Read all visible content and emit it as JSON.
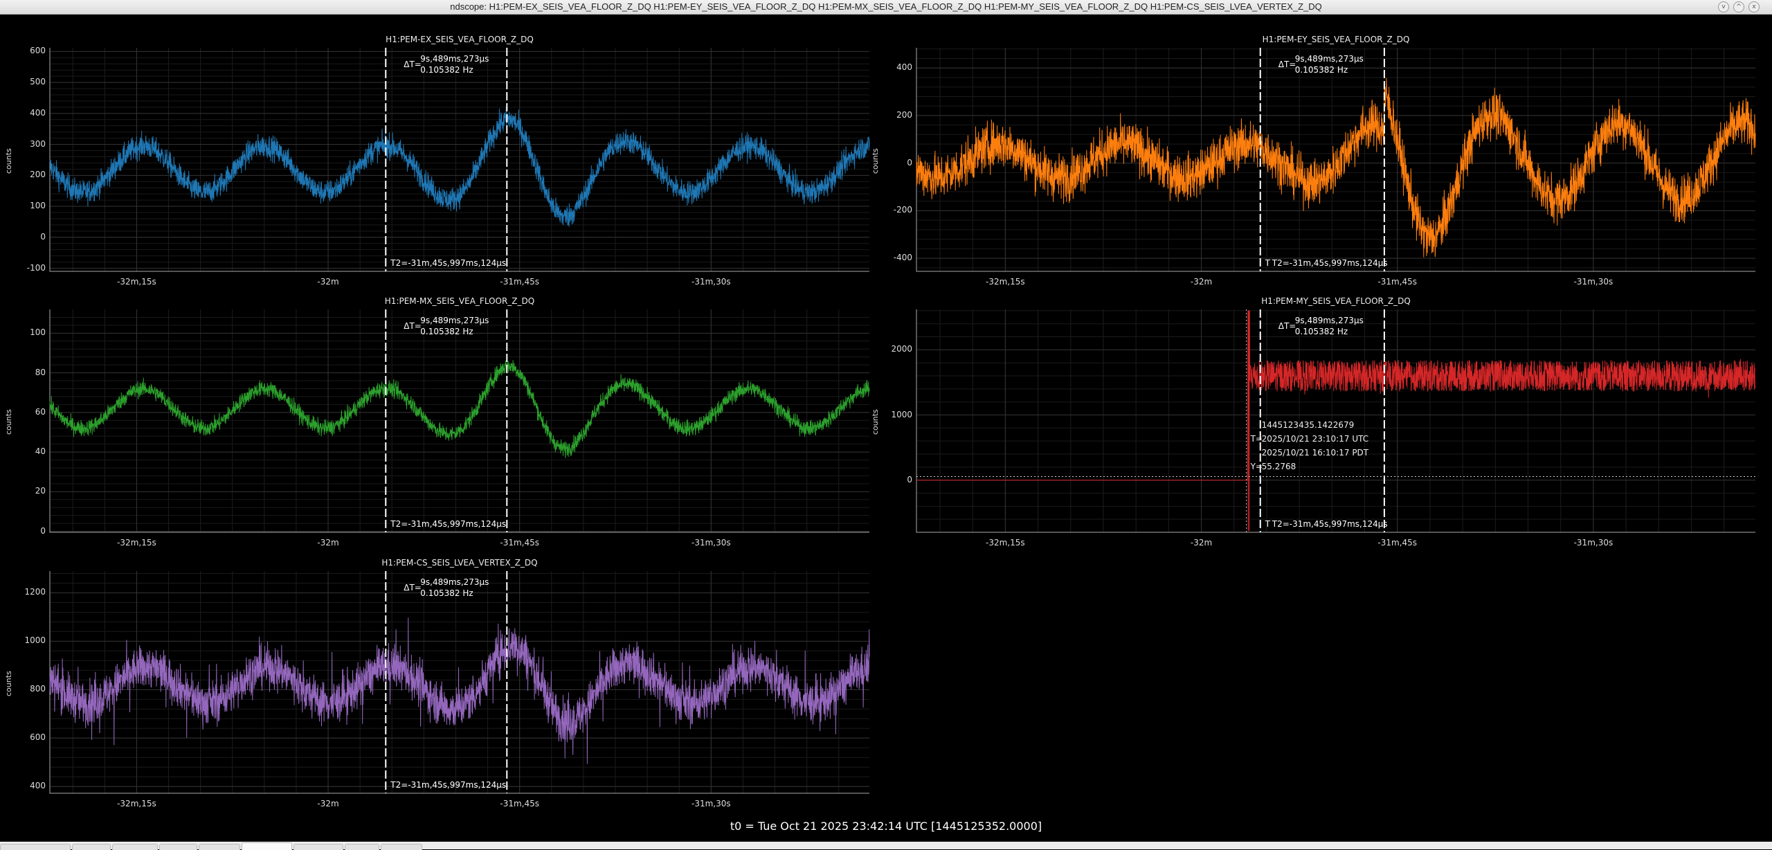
{
  "window": {
    "title": "ndscope: H1:PEM-EX_SEIS_VEA_FLOOR_Z_DQ H1:PEM-EY_SEIS_VEA_FLOOR_Z_DQ H1:PEM-MX_SEIS_VEA_FLOOR_Z_DQ H1:PEM-MY_SEIS_VEA_FLOOR_Z_DQ H1:PEM-CS_SEIS_LVEA_VERTEX_Z_DQ",
    "buttons": [
      "v",
      "^",
      "x"
    ]
  },
  "x_axis": {
    "tick_labels": [
      "-32m,15s",
      "-32m",
      "-31m,45s",
      "-31m,30s"
    ],
    "tick_values_s": [
      -1935,
      -1920,
      -1905,
      -1890
    ],
    "xlim_s": [
      -1941.8,
      -1877.6
    ]
  },
  "cursors": {
    "t1_s": -1915.487,
    "t2_s": -1905.997,
    "delta_prefix": "ΔT=",
    "delta_time": "9s,489ms,273µs",
    "delta_freq": "0.105382 Hz",
    "t2_label": "T2=-31m,45s,997ms,124µs",
    "t1_fragment": "T"
  },
  "plots": [
    {
      "channel": "H1:PEM-EX_SEIS_VEA_FLOOR_Z_DQ",
      "ylabel": "counts",
      "color": "#1f77b4",
      "yticks": [
        600,
        500,
        400,
        300,
        200,
        100,
        0,
        -100
      ],
      "ylim": [
        -110,
        612
      ]
    },
    {
      "channel": "H1:PEM-EY_SEIS_VEA_FLOOR_Z_DQ",
      "ylabel": "counts",
      "color": "#ff7f0e",
      "yticks": [
        400,
        200,
        0,
        -200,
        -400
      ],
      "ylim": [
        -455,
        485
      ]
    },
    {
      "channel": "H1:PEM-MX_SEIS_VEA_FLOOR_Z_DQ",
      "ylabel": "counts",
      "color": "#2ca02c",
      "yticks": [
        100,
        80,
        60,
        40,
        20,
        0
      ],
      "ylim": [
        -0.5,
        112
      ]
    },
    {
      "channel": "H1:PEM-MY_SEIS_VEA_FLOOR_Z_DQ",
      "ylabel": "counts",
      "color": "#d62728",
      "yticks": [
        2000,
        1000,
        0
      ],
      "ylim": [
        -800,
        2620
      ]
    },
    {
      "channel": "H1:PEM-CS_SEIS_LVEA_VERTEX_Z_DQ",
      "ylabel": "counts",
      "color": "#9467bd",
      "yticks": [
        1200,
        1000,
        800,
        600,
        400
      ],
      "ylim": [
        372,
        1290
      ]
    }
  ],
  "crosshair": {
    "plot_index": 3,
    "t_s": -1916.5,
    "y_value": 55.2768,
    "gps": "1445123435.1422679",
    "t_prefix": "T=",
    "utc": "2025/10/21 23:10:17 UTC",
    "local": "2025/10/21 16:10:17 PDT",
    "y_prefix": "Y=",
    "y": "55.2768"
  },
  "footer": {
    "t0": "t0 = Tue Oct 21 2025 23:42:14 UTC [1445125352.0000]"
  },
  "tabs": {
    "count": 9,
    "active_index": 5
  }
}
